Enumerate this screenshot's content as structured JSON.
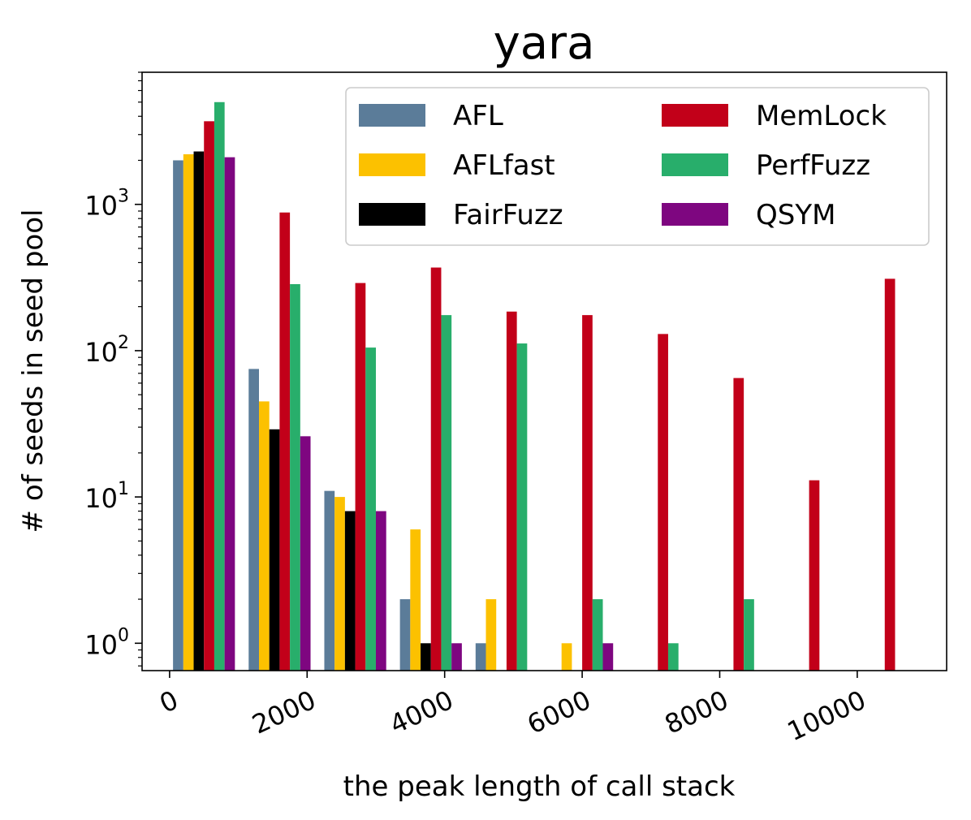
{
  "chart_data": {
    "type": "bar",
    "title": "yara",
    "xlabel": "the peak length of call stack",
    "ylabel": "# of seeds in seed pool",
    "y_scale": "log",
    "ylim": [
      0.65,
      8000
    ],
    "xlim": [
      -400,
      11300
    ],
    "grid": false,
    "legend_position": "top-right",
    "legend_columns": 2,
    "x_ticks": [
      0,
      2000,
      4000,
      6000,
      8000,
      10000
    ],
    "x_tick_labels": [
      "0",
      "2000",
      "4000",
      "6000",
      "8000",
      "10000"
    ],
    "y_ticks": [
      {
        "base": "10",
        "exp": "0",
        "value": 1
      },
      {
        "base": "10",
        "exp": "1",
        "value": 10
      },
      {
        "base": "10",
        "exp": "2",
        "value": 100
      },
      {
        "base": "10",
        "exp": "3",
        "value": 1000
      }
    ],
    "bin_centers": [
      500,
      1600,
      2700,
      3800,
      4900,
      6000,
      7100,
      8200,
      9300,
      10400
    ],
    "bar_width": 150,
    "series": [
      {
        "name": "AFL",
        "color": "#5b7c99",
        "values": [
          2000,
          75,
          11,
          2,
          1,
          0,
          0,
          0,
          0,
          0
        ]
      },
      {
        "name": "AFLfast",
        "color": "#fcc100",
        "values": [
          2200,
          45,
          10,
          6,
          2,
          1,
          0,
          0,
          0,
          0
        ]
      },
      {
        "name": "FairFuzz",
        "color": "#000000",
        "values": [
          2300,
          29,
          8,
          1,
          0,
          0,
          0,
          0,
          0,
          0
        ]
      },
      {
        "name": "MemLock",
        "color": "#c20019",
        "values": [
          3700,
          880,
          290,
          370,
          185,
          175,
          130,
          65,
          13,
          310
        ]
      },
      {
        "name": "PerfFuzz",
        "color": "#28ae6b",
        "values": [
          5000,
          285,
          105,
          175,
          112,
          2,
          1,
          2,
          0,
          0
        ]
      },
      {
        "name": "QSYM",
        "color": "#7e0680",
        "values": [
          2100,
          26,
          8,
          1,
          0,
          1,
          0,
          0,
          0,
          0
        ]
      }
    ]
  }
}
